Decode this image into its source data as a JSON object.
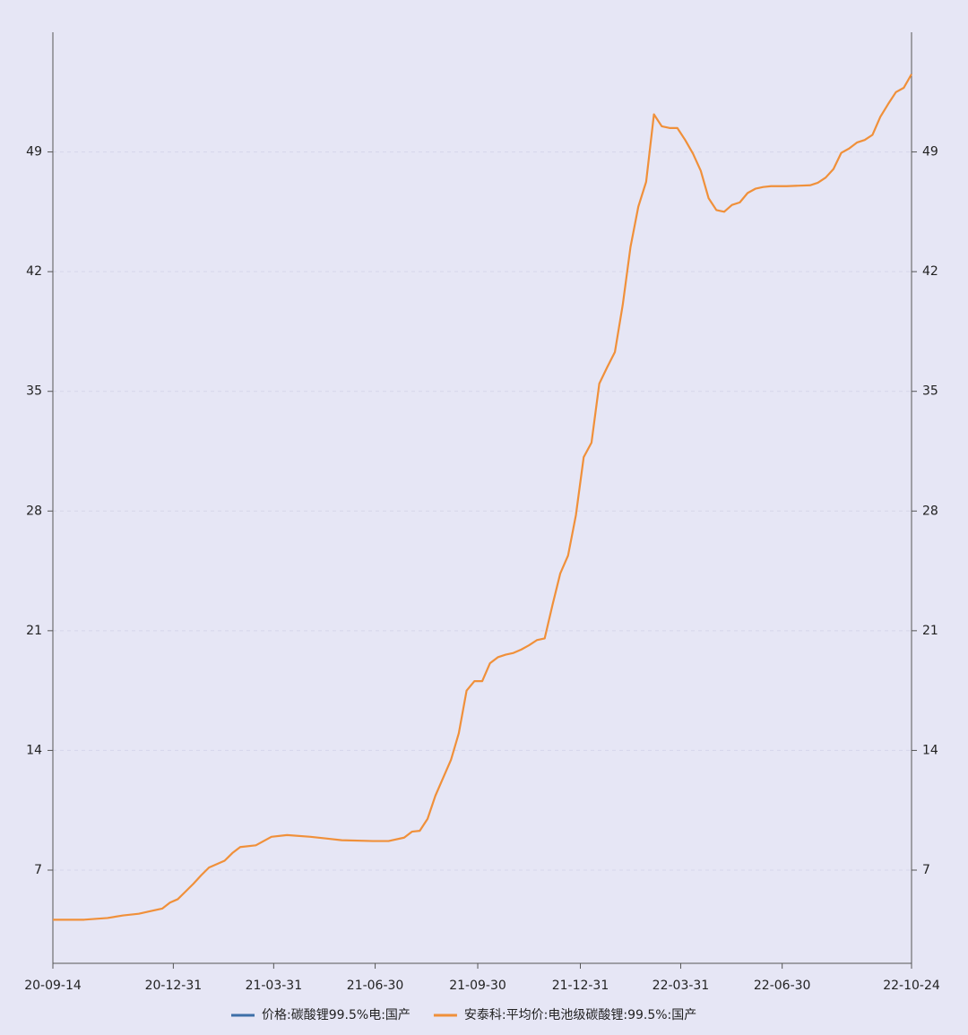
{
  "chart_data": {
    "type": "line",
    "x": [
      "20-09-14",
      "20-10-12",
      "20-11-02",
      "20-11-16",
      "20-11-30",
      "20-12-14",
      "20-12-21",
      "20-12-28",
      "21-01-04",
      "21-01-11",
      "21-01-18",
      "21-01-25",
      "21-02-01",
      "21-02-15",
      "21-02-22",
      "21-03-01",
      "21-03-15",
      "21-03-22",
      "21-03-29",
      "21-04-12",
      "21-05-03",
      "21-05-17",
      "21-05-31",
      "21-06-28",
      "21-07-12",
      "21-07-26",
      "21-08-02",
      "21-08-09",
      "21-08-16",
      "21-08-23",
      "21-08-30",
      "21-09-06",
      "21-09-13",
      "21-09-20",
      "21-09-27",
      "21-10-04",
      "21-10-11",
      "21-10-18",
      "21-10-25",
      "21-11-01",
      "21-11-08",
      "21-11-15",
      "21-11-22",
      "21-11-29",
      "21-12-06",
      "21-12-13",
      "21-12-20",
      "21-12-27",
      "22-01-03",
      "22-01-10",
      "22-01-17",
      "22-01-24",
      "22-01-31",
      "22-02-07",
      "22-02-14",
      "22-02-21",
      "22-02-28",
      "22-03-07",
      "22-03-14",
      "22-03-21",
      "22-03-28",
      "22-04-04",
      "22-04-11",
      "22-04-18",
      "22-04-25",
      "22-05-02",
      "22-05-09",
      "22-05-16",
      "22-05-23",
      "22-05-30",
      "22-06-06",
      "22-06-13",
      "22-06-20",
      "22-07-04",
      "22-07-25",
      "22-08-01",
      "22-08-08",
      "22-08-15",
      "22-08-22",
      "22-08-29",
      "22-09-05",
      "22-09-12",
      "22-09-19",
      "22-09-26",
      "22-10-03",
      "22-10-10",
      "22-10-17",
      "22-10-24"
    ],
    "series": [
      {
        "name": "价格:碳酸锂99.5%电:国产",
        "color": "#3d6fa8",
        "values": [
          null,
          null,
          null,
          null,
          null,
          null,
          null,
          null,
          null,
          null,
          null,
          null,
          null,
          null,
          null,
          null,
          null,
          null,
          null,
          null,
          null,
          null,
          null,
          null,
          null,
          null,
          null,
          null,
          null,
          null,
          null,
          null,
          null,
          null,
          null,
          null,
          null,
          null,
          null,
          null,
          null,
          null,
          null,
          null,
          null,
          null,
          null,
          null,
          null,
          null,
          null,
          null,
          null,
          null,
          null,
          null,
          null,
          null,
          null,
          null,
          null,
          null,
          null,
          null,
          null,
          null,
          null,
          null,
          null,
          null,
          null,
          null,
          null,
          null,
          null,
          null,
          null,
          null,
          null,
          null,
          null,
          null,
          null,
          null,
          null,
          null,
          null,
          null
        ]
      },
      {
        "name": "安泰科:平均价:电池级碳酸锂:99.5%:国产",
        "color": "#f0903a",
        "values": [
          4.1,
          4.1,
          4.2,
          4.35,
          4.45,
          4.65,
          4.75,
          5.1,
          5.3,
          5.75,
          6.2,
          6.7,
          7.15,
          7.55,
          8.0,
          8.35,
          8.45,
          8.7,
          8.95,
          9.05,
          8.95,
          8.85,
          8.75,
          8.7,
          8.7,
          8.9,
          9.25,
          9.3,
          10.0,
          11.35,
          12.4,
          13.45,
          15.0,
          17.5,
          18.05,
          18.05,
          19.1,
          19.45,
          19.6,
          19.7,
          19.9,
          20.15,
          20.45,
          20.55,
          22.5,
          24.35,
          25.4,
          27.75,
          31.15,
          32.0,
          35.45,
          36.4,
          37.3,
          40.05,
          43.45,
          45.8,
          47.25,
          51.2,
          50.5,
          50.4,
          50.4,
          49.7,
          48.9,
          47.9,
          46.3,
          45.6,
          45.5,
          45.9,
          46.05,
          46.6,
          46.85,
          46.95,
          47.0,
          47.0,
          47.05,
          47.2,
          47.5,
          48.0,
          48.95,
          49.2,
          49.55,
          49.7,
          50.0,
          51.05,
          51.8,
          52.5,
          52.75,
          53.55
        ]
      }
    ],
    "xlim": [
      "20-09-14",
      "22-10-24"
    ],
    "xticks": [
      "20-09-14",
      "20-12-31",
      "21-03-31",
      "21-06-30",
      "21-09-30",
      "21-12-31",
      "22-03-31",
      "22-06-30",
      "22-10-24"
    ],
    "ylim": [
      1.55,
      56
    ],
    "yticks": [
      7,
      14,
      21,
      28,
      35,
      42,
      49
    ],
    "grid": true,
    "legend": "bottom"
  }
}
